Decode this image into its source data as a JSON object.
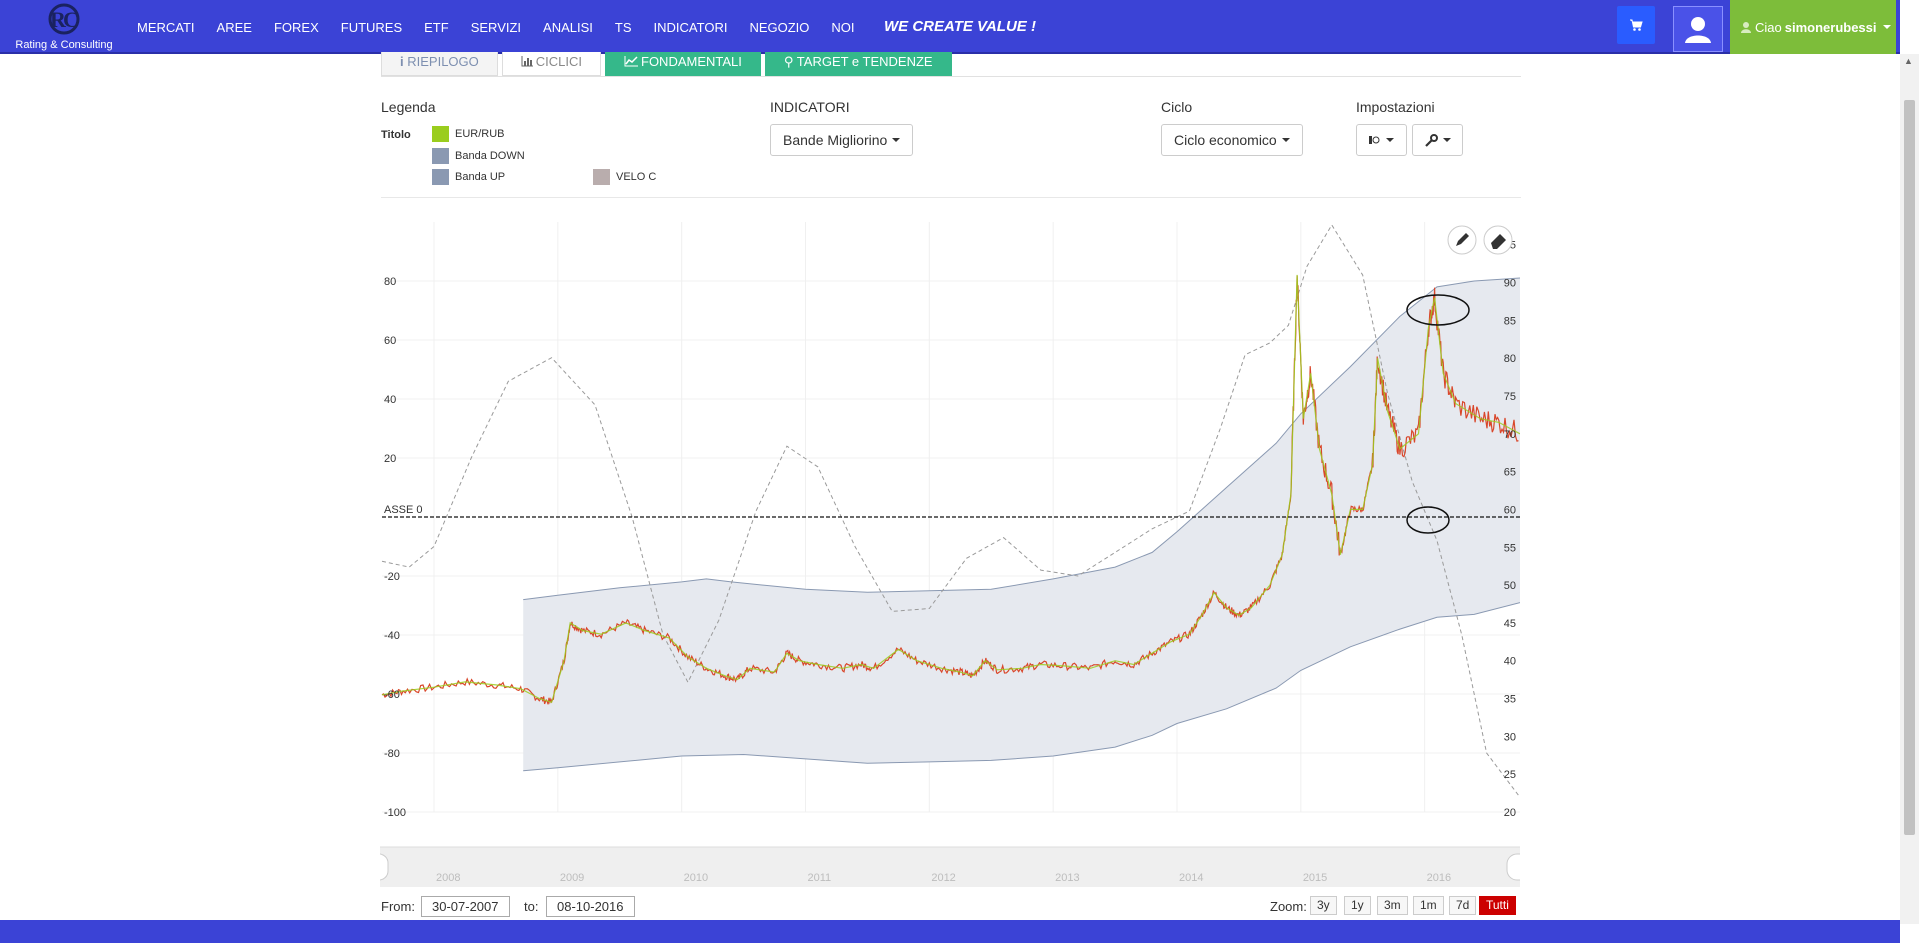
{
  "brand": {
    "logo_text": "Rating & Consulting",
    "slogan": "WE CREATE VALUE !"
  },
  "nav": [
    "MERCATI",
    "AREE",
    "FOREX",
    "FUTURES",
    "ETF",
    "SERVIZI",
    "ANALISI",
    "TS",
    "INDICATORI",
    "NEGOZIO",
    "NOI"
  ],
  "user": {
    "greeting": "Ciao",
    "username": "simonerubessi"
  },
  "tabs": [
    {
      "label": "RIEPILOGO",
      "style": "inactive"
    },
    {
      "label": "CICLICI",
      "style": "active"
    },
    {
      "label": "FONDAMENTALI",
      "style": "green"
    },
    {
      "label": "TARGET e TENDENZE",
      "style": "green"
    }
  ],
  "legend": {
    "heading": "Legenda",
    "title_label": "Titolo",
    "items": [
      {
        "label": "EUR/RUB",
        "color": "#9acd1e"
      },
      {
        "label": "Banda DOWN",
        "color": "#8a99b2"
      },
      {
        "label": "Banda UP",
        "color": "#8a99b2"
      },
      {
        "label": "VELO C",
        "color": "#b9adad"
      }
    ]
  },
  "indicators": {
    "heading": "INDICATORI",
    "selected": "Bande Migliorino"
  },
  "cycle": {
    "heading": "Ciclo",
    "selected": "Ciclo economico"
  },
  "settings": {
    "heading": "Impostazioni"
  },
  "chart_data": {
    "type": "line",
    "zero_line_label": "ASSE 0",
    "left_axis": {
      "ticks": [
        80,
        60,
        40,
        20,
        -20,
        -40,
        -60,
        -80,
        -100
      ],
      "range": [
        -100,
        100
      ]
    },
    "right_axis": {
      "ticks": [
        95,
        90,
        85,
        80,
        75,
        70,
        65,
        60,
        55,
        50,
        45,
        40,
        35,
        30,
        25,
        20
      ],
      "range": [
        20,
        98
      ]
    },
    "x_ticks": [
      "2008",
      "2009",
      "2010",
      "2011",
      "2012",
      "2013",
      "2014",
      "2015",
      "2016"
    ],
    "series": [
      {
        "name": "EUR/RUB",
        "axis": "right",
        "color": "#9acd1e",
        "points": [
          [
            2007.58,
            35.5
          ],
          [
            2007.75,
            36
          ],
          [
            2008.0,
            36.5
          ],
          [
            2008.25,
            37.2
          ],
          [
            2008.5,
            36.8
          ],
          [
            2008.7,
            36.3
          ],
          [
            2008.85,
            35
          ],
          [
            2008.95,
            34.5
          ],
          [
            2009.05,
            40
          ],
          [
            2009.1,
            45
          ],
          [
            2009.2,
            44
          ],
          [
            2009.35,
            43.5
          ],
          [
            2009.55,
            45
          ],
          [
            2009.7,
            44
          ],
          [
            2009.9,
            43
          ],
          [
            2010.05,
            40.5
          ],
          [
            2010.2,
            39
          ],
          [
            2010.35,
            38
          ],
          [
            2010.45,
            37.5
          ],
          [
            2010.55,
            39
          ],
          [
            2010.75,
            38.5
          ],
          [
            2010.85,
            41
          ],
          [
            2010.95,
            40
          ],
          [
            2011.1,
            39.5
          ],
          [
            2011.3,
            39
          ],
          [
            2011.45,
            39.5
          ],
          [
            2011.55,
            39
          ],
          [
            2011.75,
            41.5
          ],
          [
            2011.9,
            40
          ],
          [
            2012.1,
            39
          ],
          [
            2012.25,
            38.5
          ],
          [
            2012.35,
            38
          ],
          [
            2012.45,
            40
          ],
          [
            2012.55,
            38.8
          ],
          [
            2012.75,
            39
          ],
          [
            2012.9,
            39.5
          ],
          [
            2013.1,
            39.3
          ],
          [
            2013.3,
            39
          ],
          [
            2013.5,
            40
          ],
          [
            2013.65,
            39.5
          ],
          [
            2013.8,
            41
          ],
          [
            2013.95,
            42.5
          ],
          [
            2014.1,
            43.5
          ],
          [
            2014.2,
            46
          ],
          [
            2014.3,
            49
          ],
          [
            2014.4,
            47
          ],
          [
            2014.5,
            46
          ],
          [
            2014.6,
            47
          ],
          [
            2014.75,
            50
          ],
          [
            2014.85,
            54
          ],
          [
            2014.92,
            62
          ],
          [
            2014.97,
            91
          ],
          [
            2015.02,
            72
          ],
          [
            2015.08,
            78
          ],
          [
            2015.15,
            68
          ],
          [
            2015.25,
            62
          ],
          [
            2015.32,
            54
          ],
          [
            2015.4,
            60
          ],
          [
            2015.5,
            60
          ],
          [
            2015.58,
            66
          ],
          [
            2015.62,
            80
          ],
          [
            2015.7,
            73
          ],
          [
            2015.8,
            68
          ],
          [
            2015.95,
            70
          ],
          [
            2016.03,
            84
          ],
          [
            2016.08,
            88
          ],
          [
            2016.15,
            78
          ],
          [
            2016.25,
            74
          ],
          [
            2016.45,
            72
          ],
          [
            2016.6,
            71.5
          ],
          [
            2016.77,
            70
          ]
        ]
      },
      {
        "name": "Banda UP",
        "axis": "left",
        "color": "#8a99b2",
        "points": [
          [
            2008.72,
            -28
          ],
          [
            2009.0,
            -26.5
          ],
          [
            2009.5,
            -24
          ],
          [
            2010.0,
            -22
          ],
          [
            2010.2,
            -21
          ],
          [
            2010.4,
            -22
          ],
          [
            2011.0,
            -24.5
          ],
          [
            2011.5,
            -25.5
          ],
          [
            2012.0,
            -25
          ],
          [
            2012.5,
            -24.5
          ],
          [
            2013.0,
            -21
          ],
          [
            2013.5,
            -17
          ],
          [
            2013.8,
            -12
          ],
          [
            2014.0,
            -5
          ],
          [
            2014.4,
            10
          ],
          [
            2014.8,
            25
          ],
          [
            2015.0,
            35
          ],
          [
            2015.4,
            51
          ],
          [
            2015.8,
            68
          ],
          [
            2016.1,
            78
          ],
          [
            2016.4,
            80
          ],
          [
            2016.77,
            81
          ]
        ]
      },
      {
        "name": "Banda DOWN",
        "axis": "left",
        "color": "#8a99b2",
        "points": [
          [
            2008.72,
            -86
          ],
          [
            2009.0,
            -85
          ],
          [
            2009.5,
            -83
          ],
          [
            2010.0,
            -81
          ],
          [
            2010.5,
            -80.5
          ],
          [
            2011.0,
            -82
          ],
          [
            2011.5,
            -83.5
          ],
          [
            2012.0,
            -83
          ],
          [
            2012.5,
            -82.5
          ],
          [
            2013.0,
            -81
          ],
          [
            2013.5,
            -78
          ],
          [
            2013.8,
            -74
          ],
          [
            2014.0,
            -70
          ],
          [
            2014.4,
            -65
          ],
          [
            2014.8,
            -58
          ],
          [
            2015.0,
            -52
          ],
          [
            2015.4,
            -44
          ],
          [
            2015.8,
            -38
          ],
          [
            2016.1,
            -34
          ],
          [
            2016.4,
            -33
          ],
          [
            2016.77,
            -29
          ]
        ]
      },
      {
        "name": "VELO C",
        "axis": "left",
        "color": "#999999",
        "points": [
          [
            2007.58,
            -15
          ],
          [
            2007.8,
            -17
          ],
          [
            2008.0,
            -10
          ],
          [
            2008.3,
            20
          ],
          [
            2008.6,
            46
          ],
          [
            2008.95,
            54
          ],
          [
            2009.3,
            38
          ],
          [
            2009.6,
            0
          ],
          [
            2009.85,
            -40
          ],
          [
            2010.05,
            -56
          ],
          [
            2010.3,
            -35
          ],
          [
            2010.6,
            2
          ],
          [
            2010.85,
            24
          ],
          [
            2011.1,
            17
          ],
          [
            2011.4,
            -10
          ],
          [
            2011.7,
            -32
          ],
          [
            2012.0,
            -31
          ],
          [
            2012.3,
            -14
          ],
          [
            2012.6,
            -7
          ],
          [
            2012.9,
            -18
          ],
          [
            2013.2,
            -20
          ],
          [
            2013.5,
            -12
          ],
          [
            2013.8,
            -4
          ],
          [
            2014.1,
            2
          ],
          [
            2014.35,
            30
          ],
          [
            2014.55,
            55
          ],
          [
            2014.75,
            59
          ],
          [
            2014.9,
            65
          ],
          [
            2015.05,
            85
          ],
          [
            2015.25,
            99
          ],
          [
            2015.5,
            82
          ],
          [
            2015.7,
            42
          ],
          [
            2015.9,
            12
          ],
          [
            2016.1,
            -8
          ],
          [
            2016.3,
            -40
          ],
          [
            2016.5,
            -80
          ],
          [
            2016.77,
            -95
          ]
        ]
      }
    ]
  },
  "range": {
    "from_label": "From:",
    "from": "30-07-2007",
    "to_label": "to:",
    "to": "08-10-2016",
    "zoom_label": "Zoom:",
    "zoom": [
      "3y",
      "1y",
      "3m",
      "1m",
      "7d",
      "Tutti"
    ],
    "zoom_selected": "Tutti"
  }
}
